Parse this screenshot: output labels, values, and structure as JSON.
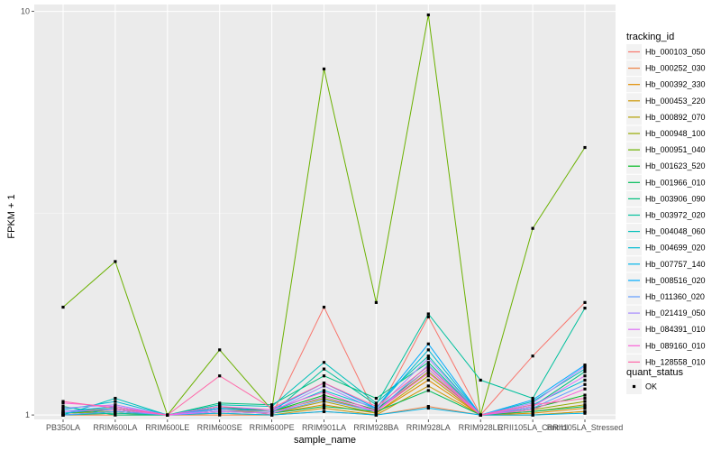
{
  "chart_data": {
    "type": "line",
    "title": "",
    "xlabel": "sample_name",
    "ylabel": "FPKM + 1",
    "y_scale": "log10",
    "ylim": [
      0.975,
      10.4
    ],
    "y_ticks": [
      {
        "value": 1,
        "label": "1"
      },
      {
        "value": 10,
        "label": "10"
      }
    ],
    "grid": true,
    "legend_position": "right",
    "categories": [
      "PB350LA",
      "RRIM600LA",
      "RRIM600LE",
      "RRIM600SE",
      "RRIM600PE",
      "RRIM901LA",
      "RRIM928BA",
      "RRIM928LA",
      "RRIM928LE",
      "RRII105LA_Control",
      "RRII105LA_Stressed"
    ],
    "color_legend_title": "tracking_id",
    "shape_legend_title": "quant_status",
    "shape_legend_entries": [
      {
        "label": "OK",
        "marker": "square"
      }
    ],
    "series": [
      {
        "name": "Hb_000103_050",
        "color": "#F8766D",
        "values": [
          1.0,
          1.02,
          1.0,
          1.05,
          1.0,
          1.85,
          1.0,
          1.75,
          1.0,
          1.4,
          1.9
        ]
      },
      {
        "name": "Hb_000252_030",
        "color": "#EE8043",
        "values": [
          1.0,
          1.0,
          1.0,
          1.0,
          1.0,
          1.02,
          1.0,
          1.05,
          1.0,
          1.0,
          1.02
        ]
      },
      {
        "name": "Hb_000392_330",
        "color": "#E08B00",
        "values": [
          1.01,
          1.03,
          1.0,
          1.02,
          1.01,
          1.06,
          1.01,
          1.22,
          1.0,
          1.01,
          1.04
        ]
      },
      {
        "name": "Hb_000453_220",
        "color": "#CC9600",
        "values": [
          1.0,
          1.01,
          1.0,
          1.01,
          1.0,
          1.04,
          1.0,
          1.18,
          1.0,
          1.0,
          1.02
        ]
      },
      {
        "name": "Hb_000892_070",
        "color": "#B39F00",
        "values": [
          1.01,
          1.02,
          1.0,
          1.03,
          1.01,
          1.08,
          1.01,
          1.25,
          1.0,
          1.02,
          1.06
        ]
      },
      {
        "name": "Hb_000948_100",
        "color": "#96A800",
        "values": [
          1.02,
          1.04,
          1.0,
          1.05,
          1.02,
          1.1,
          1.02,
          1.28,
          1.0,
          1.03,
          1.08
        ]
      },
      {
        "name": "Hb_000951_040",
        "color": "#6BB100",
        "values": [
          1.85,
          2.4,
          1.0,
          1.45,
          1.03,
          7.2,
          1.9,
          9.8,
          1.0,
          2.9,
          4.6
        ]
      },
      {
        "name": "Hb_001623_520",
        "color": "#00B81F",
        "values": [
          1.01,
          1.03,
          1.0,
          1.04,
          1.02,
          1.12,
          1.03,
          1.3,
          1.0,
          1.04,
          1.12
        ]
      },
      {
        "name": "Hb_001966_010",
        "color": "#00BC59",
        "values": [
          1.0,
          1.02,
          1.0,
          1.02,
          1.01,
          1.05,
          1.02,
          1.15,
          1.0,
          1.02,
          1.05
        ]
      },
      {
        "name": "Hb_003906_090",
        "color": "#00BF7D",
        "values": [
          1.05,
          1.0,
          1.0,
          1.07,
          1.06,
          1.25,
          1.1,
          1.35,
          1.0,
          1.05,
          1.28
        ]
      },
      {
        "name": "Hb_003972_020",
        "color": "#00C09D",
        "values": [
          1.0,
          1.01,
          1.0,
          1.02,
          1.01,
          1.3,
          1.06,
          1.78,
          1.22,
          1.1,
          1.84
        ]
      },
      {
        "name": "Hb_004048_060",
        "color": "#00BFB9",
        "values": [
          1.0,
          1.1,
          1.0,
          1.06,
          1.05,
          1.35,
          1.07,
          1.4,
          1.0,
          1.08,
          1.3
        ]
      },
      {
        "name": "Hb_004699_020",
        "color": "#00BBD3",
        "values": [
          1.03,
          1.08,
          1.0,
          1.03,
          1.02,
          1.15,
          1.04,
          1.45,
          1.0,
          1.06,
          1.22
        ]
      },
      {
        "name": "Hb_007757_140",
        "color": "#00B5EA",
        "values": [
          1.01,
          1.04,
          1.0,
          1.01,
          1.0,
          1.02,
          1.0,
          1.04,
          1.0,
          1.0,
          1.01
        ]
      },
      {
        "name": "Hb_008516_020",
        "color": "#00ABFD",
        "values": [
          1.02,
          1.05,
          1.0,
          1.04,
          1.03,
          1.2,
          1.04,
          1.5,
          1.0,
          1.09,
          1.33
        ]
      },
      {
        "name": "Hb_011360_020",
        "color": "#619CFF",
        "values": [
          1.0,
          1.02,
          1.0,
          1.02,
          1.01,
          1.09,
          1.02,
          1.33,
          1.0,
          1.04,
          1.19
        ]
      },
      {
        "name": "Hb_021419_050",
        "color": "#A58AFF",
        "values": [
          1.04,
          1.06,
          1.0,
          1.03,
          1.02,
          1.18,
          1.03,
          1.38,
          1.0,
          1.07,
          1.32
        ]
      },
      {
        "name": "Hb_084391_010",
        "color": "#DF70F8",
        "values": [
          1.02,
          1.03,
          1.0,
          1.02,
          1.01,
          1.11,
          1.02,
          1.3,
          1.0,
          1.05,
          1.25
        ]
      },
      {
        "name": "Hb_089160_010",
        "color": "#FB61D7",
        "values": [
          1.07,
          1.05,
          1.0,
          1.05,
          1.03,
          1.14,
          1.02,
          1.27,
          1.0,
          1.03,
          1.16
        ]
      },
      {
        "name": "Hb_128558_010",
        "color": "#FF66A8",
        "values": [
          1.08,
          1.04,
          1.0,
          1.25,
          1.04,
          1.2,
          1.05,
          1.32,
          1.0,
          1.06,
          1.1
        ]
      }
    ]
  }
}
